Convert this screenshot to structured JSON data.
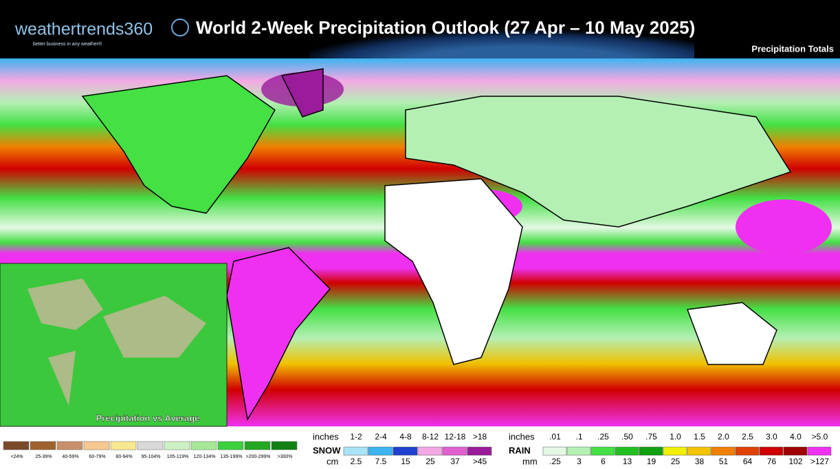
{
  "header": {
    "logo": "weathertrends360",
    "tagline": "better business in any weather®",
    "title": "World 2-Week Precipitation Outlook (27 Apr – 10 May 2025)",
    "subtitle": "Precipitation Totals"
  },
  "inset": {
    "label": "Precipitation vs Average"
  },
  "anomaly_legend": {
    "items": [
      {
        "label": "<24%",
        "color": "#7a4a2a"
      },
      {
        "label": "25-39%",
        "color": "#a0622d"
      },
      {
        "label": "40-59%",
        "color": "#c8906a"
      },
      {
        "label": "60-79%",
        "color": "#f5c990"
      },
      {
        "label": "80-94%",
        "color": "#f8e890"
      },
      {
        "label": "95-104%",
        "color": "#d8d8d8"
      },
      {
        "label": "105-119%",
        "color": "#cdf0c4"
      },
      {
        "label": "120-134%",
        "color": "#a6e896"
      },
      {
        "label": "135-199%",
        "color": "#3cd03c"
      },
      {
        "label": ">200-299%",
        "color": "#22a822"
      },
      {
        "label": ">300%",
        "color": "#128012"
      }
    ]
  },
  "snow_legend": {
    "top_unit": "inches",
    "name": "SNOW",
    "bottom_unit": "cm",
    "top_labels": [
      "1-2",
      "2-4",
      "4-8",
      "8-12",
      "12-18",
      ">18"
    ],
    "bottom_labels": [
      "2.5",
      "7.5",
      "15",
      "25",
      "37",
      ">45"
    ],
    "colors": [
      "#a8e4f8",
      "#3cb4f0",
      "#2040d0",
      "#f4a8e4",
      "#e060d0",
      "#9a1c9a"
    ]
  },
  "rain_legend": {
    "top_unit": "inches",
    "name": "RAIN",
    "bottom_unit": "mm",
    "top_labels": [
      ".01",
      ".1",
      ".25",
      ".50",
      ".75",
      "1.0",
      "1.5",
      "2.0",
      "2.5",
      "3.0",
      "4.0",
      ">5.0"
    ],
    "bottom_labels": [
      ".25",
      "3",
      "6",
      "13",
      "19",
      "25",
      "38",
      "51",
      "64",
      "76",
      "102",
      ">127"
    ],
    "colors": [
      "#e4f8e4",
      "#b4f0b4",
      "#44e044",
      "#20c020",
      "#10a010",
      "#f0f000",
      "#f4c400",
      "#f08000",
      "#e04000",
      "#d00000",
      "#a00000",
      "#f030f0"
    ]
  }
}
